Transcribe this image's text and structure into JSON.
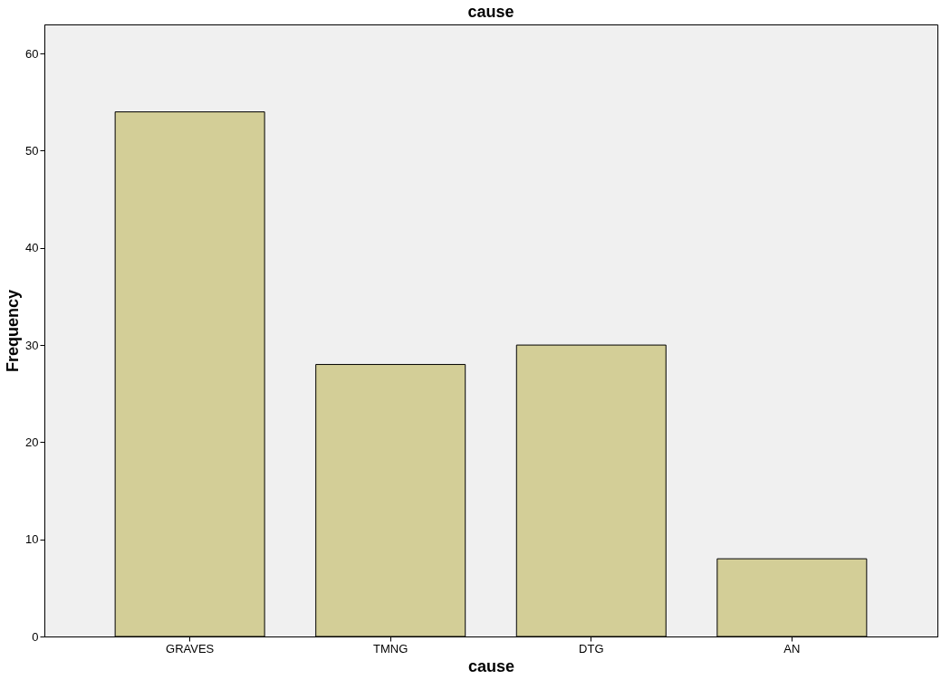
{
  "chart_data": {
    "type": "bar",
    "title": "cause",
    "xlabel": "cause",
    "ylabel": "Frequency",
    "categories": [
      "GRAVES",
      "TMNG",
      "DTG",
      "AN"
    ],
    "values": [
      54,
      28,
      30,
      8
    ],
    "color": "#d3ce97",
    "ylim": [
      0,
      63
    ],
    "yticks": [
      0,
      10,
      20,
      30,
      40,
      50,
      60
    ],
    "grid": false
  }
}
